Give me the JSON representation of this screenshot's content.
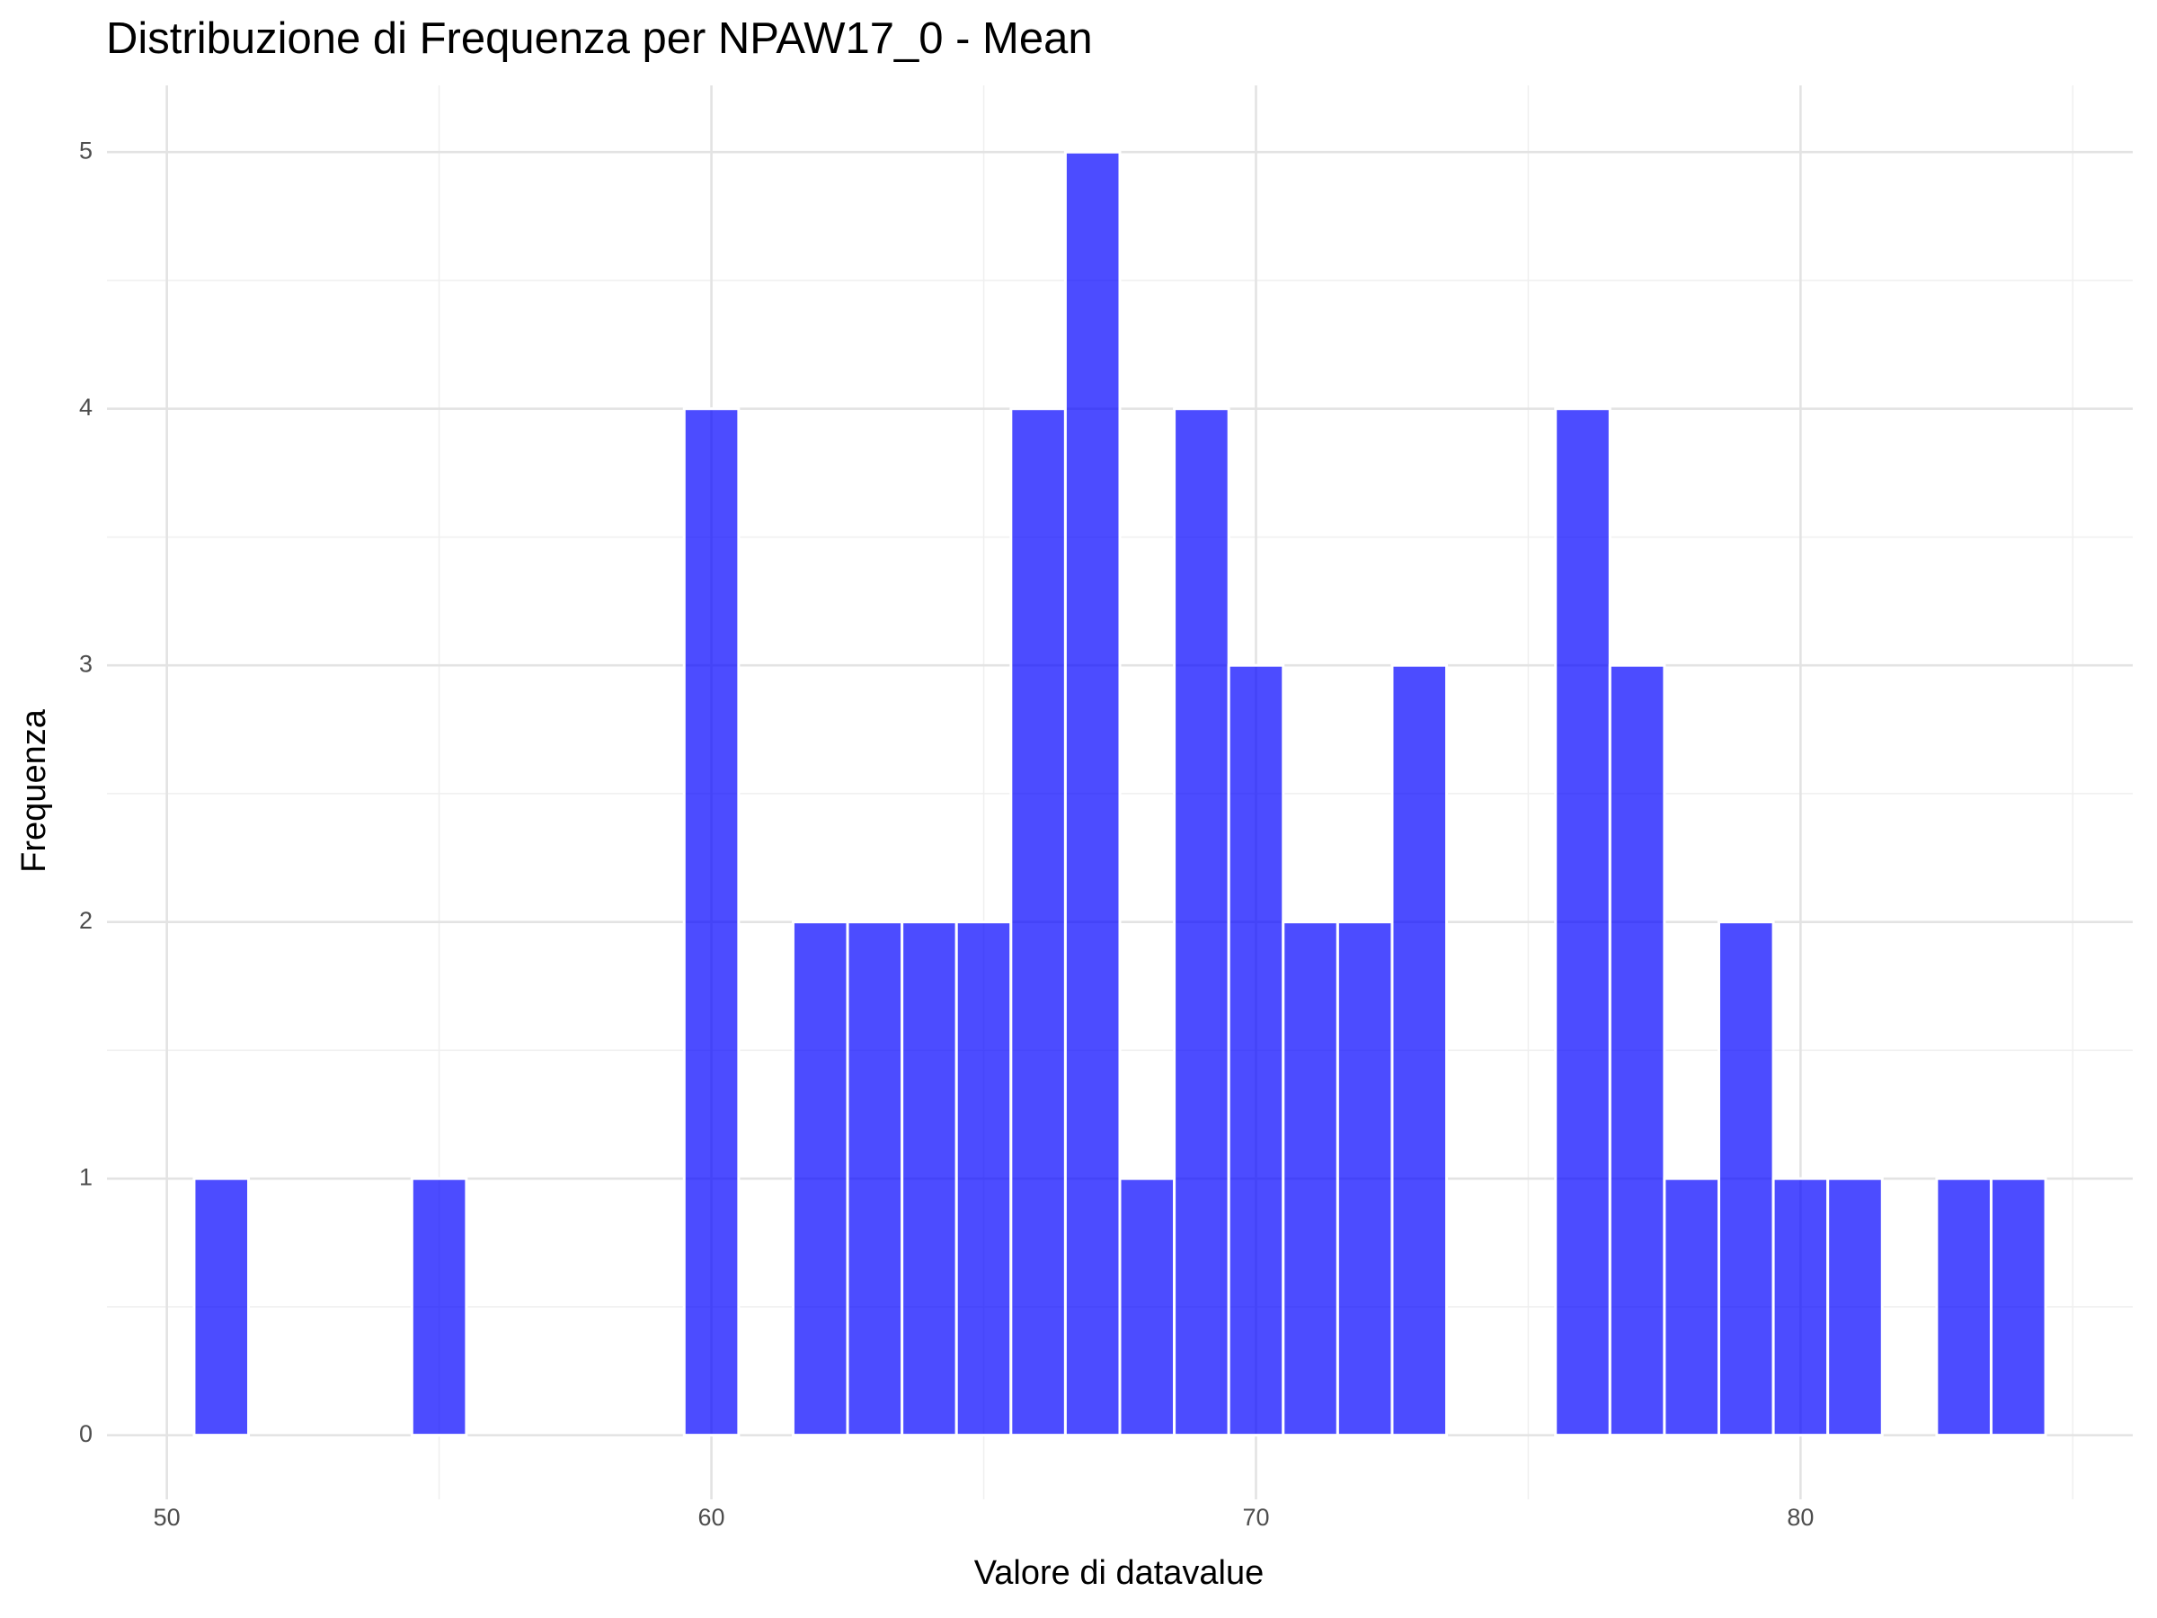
{
  "chart_data": {
    "type": "histogram",
    "title": "Distribuzione di Frequenza per NPAW17_0 - Mean",
    "x_label": "Valore di datavalue",
    "y_label": "Frequenza",
    "bins": [
      50.5,
      51.5,
      52.5,
      53.5,
      54.5,
      55.5,
      56.5,
      57.5,
      58.5,
      59.5,
      60.5,
      61.5,
      62.5,
      63.5,
      64.5,
      65.5,
      66.5,
      67.5,
      68.5,
      69.5,
      70.5,
      71.5,
      72.5,
      73.5,
      74.5,
      75.5,
      76.5,
      77.5,
      78.5,
      79.5,
      80.5,
      81.5,
      82.5,
      83.5,
      84.5
    ],
    "counts": [
      1,
      0,
      0,
      0,
      1,
      0,
      0,
      0,
      0,
      4,
      0,
      2,
      2,
      2,
      2,
      4,
      5,
      1,
      4,
      3,
      2,
      2,
      3,
      0,
      0,
      4,
      3,
      1,
      2,
      1,
      1,
      0,
      1,
      1
    ],
    "color": "#0000ff",
    "alpha": 0.7,
    "xlim": [
      48.9,
      86.1
    ],
    "ylim": [
      -0.25,
      5.26
    ],
    "xticks": [
      50,
      60,
      70,
      80
    ],
    "yticks": [
      0,
      1,
      2,
      3,
      4,
      5
    ],
    "x_minor_ticks": [
      55,
      65,
      75,
      85
    ],
    "y_minor_ticks": [
      0.5,
      1.5,
      2.5,
      3.5,
      4.5
    ],
    "grid": true
  }
}
